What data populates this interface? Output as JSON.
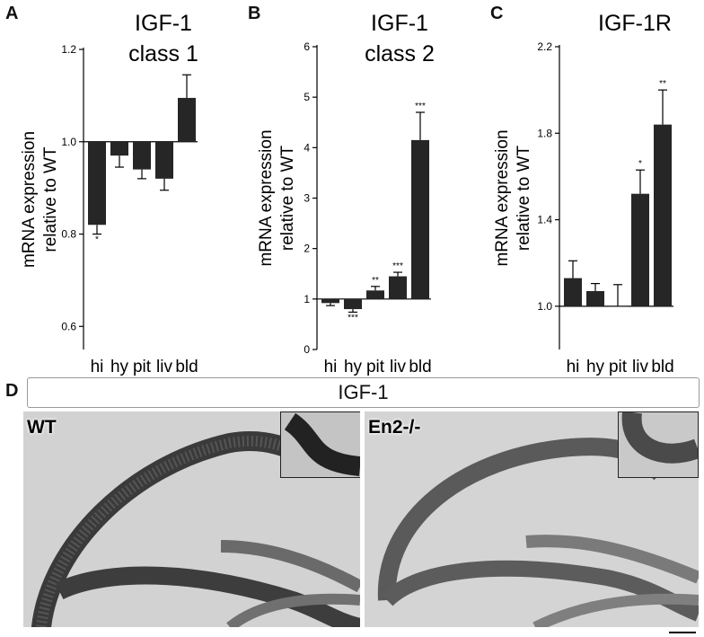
{
  "panel_labels": [
    "A",
    "B",
    "C",
    "D"
  ],
  "chart_data": [
    {
      "type": "bar",
      "title_lines": [
        "IGF-1",
        "class 1"
      ],
      "ylabel_lines": [
        "mRNA expression",
        "relative to WT"
      ],
      "categories": [
        "hi",
        "hy",
        "pit",
        "liv",
        "bld"
      ],
      "baseline": 1.0,
      "ylim": [
        0.55,
        1.2
      ],
      "yticks": [
        0.6,
        0.8,
        1.0,
        1.2
      ],
      "ytick_labels": [
        "0.6",
        "0.8",
        "1.0",
        "1.2"
      ],
      "values": [
        0.82,
        0.97,
        0.94,
        0.92,
        1.095
      ],
      "errors": [
        0.02,
        0.025,
        0.02,
        0.025,
        0.05
      ],
      "significance": [
        "*",
        "",
        "",
        "",
        ""
      ]
    },
    {
      "type": "bar",
      "title_lines": [
        "IGF-1",
        "class 2"
      ],
      "ylabel_lines": [
        "mRNA expression",
        "relative to WT"
      ],
      "categories": [
        "hi",
        "hy",
        "pit",
        "liv",
        "bld"
      ],
      "baseline": 1.0,
      "ylim": [
        0,
        6
      ],
      "yticks": [
        0,
        1,
        2,
        3,
        4,
        5,
        6
      ],
      "ytick_labels": [
        "0",
        "1",
        "2",
        "3",
        "4",
        "5",
        "6"
      ],
      "values": [
        0.92,
        0.8,
        1.17,
        1.45,
        4.15
      ],
      "errors": [
        0.05,
        0.06,
        0.08,
        0.08,
        0.55
      ],
      "significance": [
        "",
        "***",
        "**",
        "***",
        "***"
      ]
    },
    {
      "type": "bar",
      "title_lines": [
        "IGF-1R"
      ],
      "ylabel_lines": [
        "mRNA expression",
        "relative to WT"
      ],
      "categories": [
        "hi",
        "hy",
        "pit",
        "liv",
        "bld"
      ],
      "baseline": 1.0,
      "ylim": [
        0.8,
        2.2
      ],
      "yticks": [
        1.0,
        1.4,
        1.8,
        2.2
      ],
      "ytick_labels": [
        "1.0",
        "1.4",
        "1.8",
        "2.2"
      ],
      "values": [
        1.13,
        1.07,
        1.0,
        1.52,
        1.84
      ],
      "errors": [
        0.08,
        0.035,
        0.1,
        0.11,
        0.16
      ],
      "significance": [
        "",
        "",
        "",
        "*",
        "**"
      ]
    }
  ],
  "panel_d": {
    "banner": "IGF-1",
    "left_label": "WT",
    "right_label": "En2-/-"
  }
}
